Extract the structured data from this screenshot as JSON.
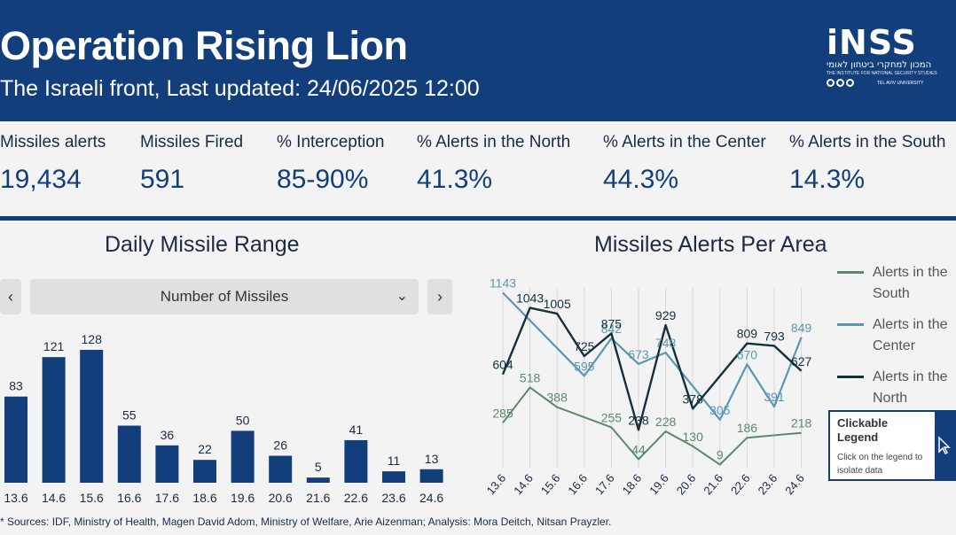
{
  "header": {
    "title": "Operation Rising Lion",
    "subtitle": "The Israeli front, Last updated: 24/06/2025 12:00",
    "logo": {
      "main": "iNSS",
      "hebrew": "המכון למחקרי ביטחון לאומי",
      "english": "THE INSTITUTE FOR NATIONAL SECURITY STUDIES",
      "university": "TEL AVIV UNIVERSITY"
    }
  },
  "kpis": [
    {
      "label": "Missiles alerts",
      "value": "19,434"
    },
    {
      "label": "Missiles Fired",
      "value": "591"
    },
    {
      "label": "% Interception",
      "value": "85-90%"
    },
    {
      "label": "% Alerts in the North",
      "value": "41.3%"
    },
    {
      "label": "% Alerts in the Center",
      "value": "44.3%"
    },
    {
      "label": "% Alerts in the South",
      "value": "14.3%"
    }
  ],
  "left_panel": {
    "title": "Daily Missile Range",
    "prev_label": "‹",
    "next_label": "›",
    "dropdown_value": "Number of Missiles"
  },
  "right_panel": {
    "title": "Missiles Alerts Per Area",
    "clickable_legend": {
      "title": "Clickable Legend",
      "description": "Click on the legend to isolate data"
    }
  },
  "colors": {
    "header": "#123e7c",
    "bar": "#123e7c",
    "south": "#5a8a6a",
    "center": "#5b97b3",
    "north": "#12303f"
  },
  "chart_data": [
    {
      "type": "bar",
      "title": "Daily Missile Range",
      "categories": [
        "13.6",
        "14.6",
        "15.6",
        "16.6",
        "17.6",
        "18.6",
        "19.6",
        "20.6",
        "21.6",
        "22.6",
        "23.6",
        "24.6"
      ],
      "values": [
        83,
        121,
        128,
        55,
        36,
        22,
        50,
        26,
        5,
        41,
        11,
        13
      ],
      "ylim": [
        0,
        140
      ]
    },
    {
      "type": "line",
      "title": "Missiles Alerts Per Area",
      "categories": [
        "13.6",
        "14.6",
        "15.6",
        "16.6",
        "17.6",
        "18.6",
        "19.6",
        "20.6",
        "21.6",
        "22.6",
        "23.6",
        "24.6"
      ],
      "ylim": [
        0,
        1300
      ],
      "legend": "right",
      "series": [
        {
          "name": "Alerts in the South",
          "key": "south",
          "values": [
            285,
            518,
            388,
            null,
            255,
            44,
            228,
            130,
            9,
            186,
            null,
            218
          ]
        },
        {
          "name": "Alerts in the Center",
          "key": "center",
          "values": [
            1143,
            null,
            null,
            595,
            842,
            673,
            748,
            null,
            305,
            670,
            391,
            849
          ]
        },
        {
          "name": "Alerts in the North",
          "key": "north",
          "values": [
            604,
            1043,
            1005,
            725,
            875,
            238,
            929,
            378,
            null,
            809,
            793,
            627
          ]
        }
      ]
    }
  ],
  "source": "* Sources: IDF, Ministry of Health, Magen David Adom, Ministry of Welfare, Arie Aizenman; Analysis: Mora Deitch, Nitsan Prayzler."
}
